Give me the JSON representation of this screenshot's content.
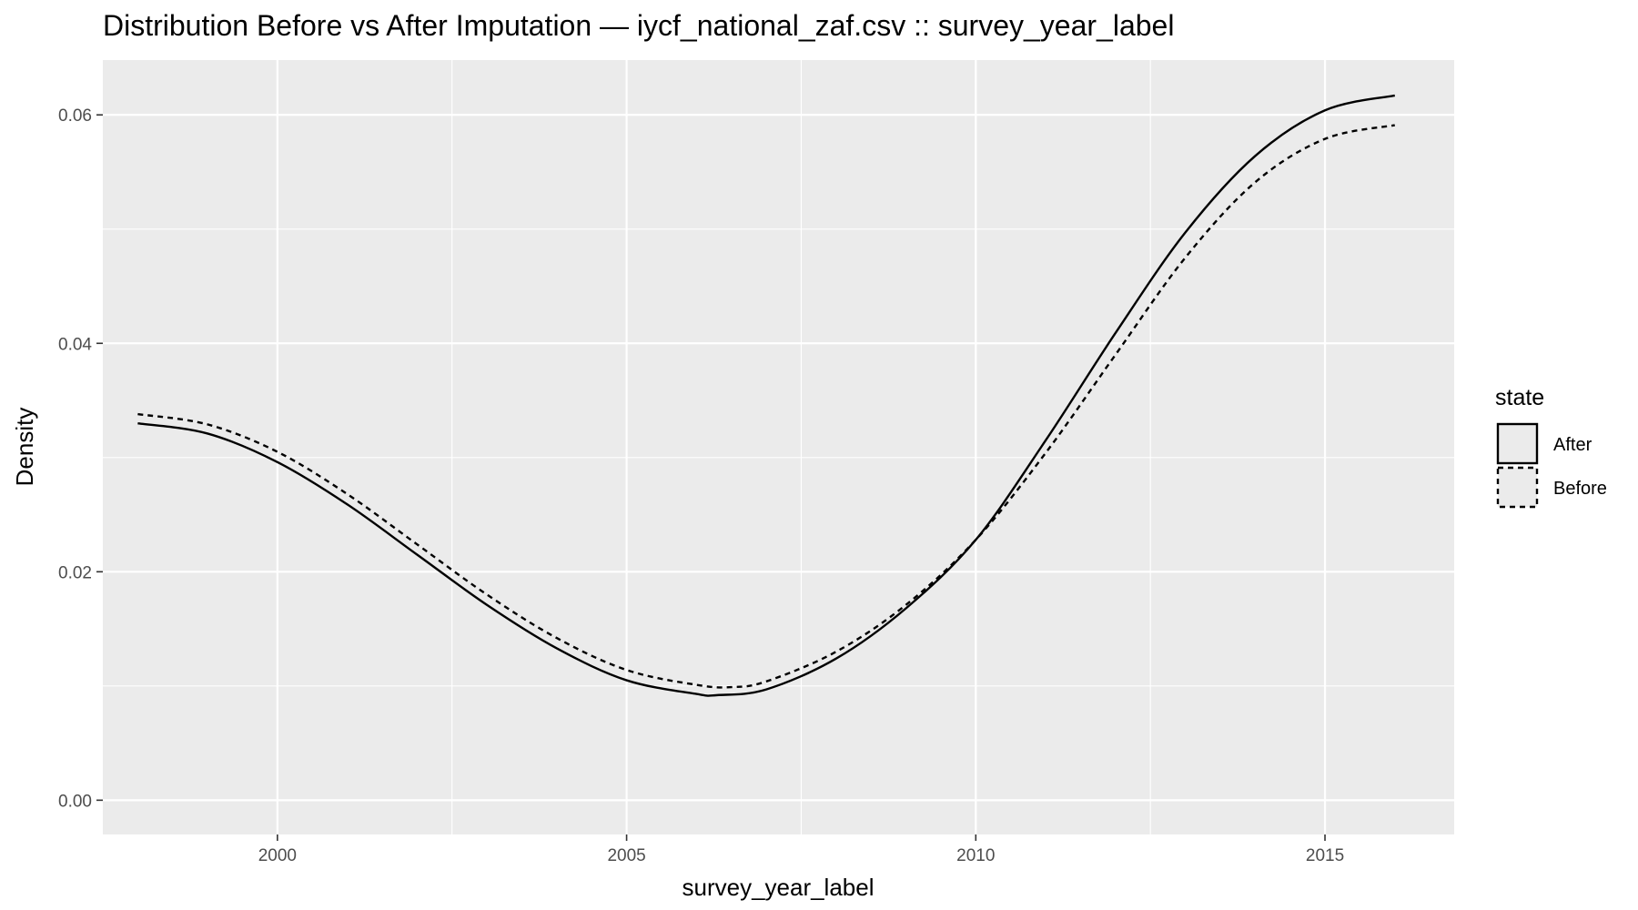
{
  "chart_data": {
    "type": "line",
    "title": "Distribution Before vs After Imputation — iycf_national_zaf.csv :: survey_year_label",
    "xlabel": "survey_year_label",
    "ylabel": "Density",
    "xlim": [
      1997.5,
      2016.85
    ],
    "ylim": [
      -0.003,
      0.0648
    ],
    "x_ticks": [
      2000,
      2005,
      2010,
      2015
    ],
    "x_tick_labels": [
      "2000",
      "2005",
      "2010",
      "2015"
    ],
    "y_ticks": [
      0.0,
      0.02,
      0.04,
      0.06
    ],
    "y_tick_labels": [
      "0.00",
      "0.02",
      "0.04",
      "0.06"
    ],
    "grid": true,
    "legend": {
      "title": "state",
      "position": "right",
      "entries": [
        "After",
        "Before"
      ]
    },
    "series": [
      {
        "name": "After",
        "line_style": "solid",
        "x": [
          1998.0,
          1999.0,
          2000.0,
          2001.0,
          2002.0,
          2003.0,
          2004.0,
          2005.0,
          2006.0,
          2006.3,
          2007.0,
          2008.0,
          2009.0,
          2010.0,
          2011.0,
          2012.0,
          2013.0,
          2014.0,
          2015.0,
          2016.0
        ],
        "values": [
          0.033,
          0.0321,
          0.0296,
          0.0259,
          0.0215,
          0.0171,
          0.0133,
          0.0105,
          0.0093,
          0.0092,
          0.0097,
          0.0124,
          0.0168,
          0.0228,
          0.0315,
          0.0409,
          0.0497,
          0.0564,
          0.0604,
          0.0617
        ]
      },
      {
        "name": "Before",
        "line_style": "dashed",
        "x": [
          1998.0,
          1999.0,
          2000.0,
          2001.0,
          2002.0,
          2003.0,
          2004.0,
          2005.0,
          2006.0,
          2006.5,
          2007.0,
          2008.0,
          2009.0,
          2010.0,
          2011.0,
          2012.0,
          2013.0,
          2014.0,
          2015.0,
          2016.0
        ],
        "values": [
          0.0338,
          0.0329,
          0.0305,
          0.0268,
          0.0224,
          0.018,
          0.0142,
          0.0114,
          0.0101,
          0.0099,
          0.0104,
          0.013,
          0.0171,
          0.0228,
          0.0304,
          0.039,
          0.0475,
          0.0541,
          0.0579,
          0.0591
        ]
      }
    ]
  }
}
